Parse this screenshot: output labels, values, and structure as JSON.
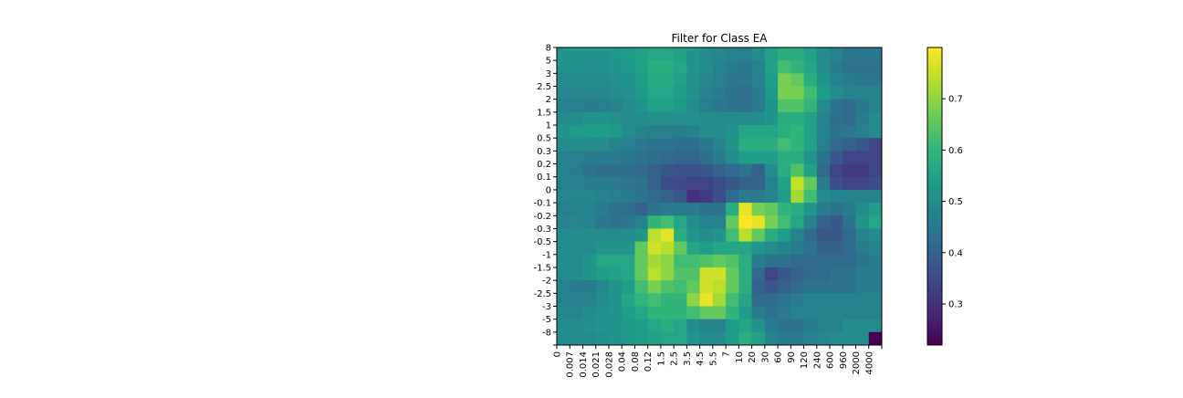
{
  "chart_data": {
    "type": "heatmap",
    "title": "Filter for Class EA",
    "xlabel": "",
    "ylabel": "",
    "x_tick_labels": [
      "0",
      "0.007",
      "0.014",
      "0.021",
      "0.028",
      "0.04",
      "0.08",
      "0.12",
      "1.5",
      "2.5",
      "3.5",
      "4.5",
      "5.5",
      "7",
      "10",
      "20",
      "30",
      "60",
      "90",
      "120",
      "240",
      "600",
      "960",
      "2000",
      "4000"
    ],
    "y_tick_labels": [
      "8",
      "5",
      "3",
      "2.5",
      "2",
      "1.5",
      "1",
      "0.5",
      "0.3",
      "0.2",
      "0.1",
      "0",
      "-0.1",
      "-0.2",
      "-0.3",
      "-0.5",
      "-1",
      "-1.5",
      "-2",
      "-2.5",
      "-3",
      "-5",
      "-8"
    ],
    "colormap": "viridis",
    "colorbar": {
      "vmin": 0.22,
      "vmax": 0.8,
      "ticks": [
        0.3,
        0.4,
        0.5,
        0.6,
        0.7
      ],
      "tick_labels": [
        "0.3",
        "0.4",
        "0.5",
        "0.6",
        "0.7"
      ]
    },
    "values": [
      [
        0.52,
        0.52,
        0.52,
        0.52,
        0.53,
        0.54,
        0.55,
        0.56,
        0.56,
        0.55,
        0.52,
        0.5,
        0.49,
        0.48,
        0.47,
        0.5,
        0.55,
        0.58,
        0.58,
        0.55,
        0.5,
        0.48,
        0.45,
        0.45,
        0.45
      ],
      [
        0.52,
        0.52,
        0.51,
        0.51,
        0.52,
        0.53,
        0.55,
        0.58,
        0.58,
        0.56,
        0.52,
        0.5,
        0.48,
        0.46,
        0.45,
        0.48,
        0.55,
        0.62,
        0.6,
        0.56,
        0.5,
        0.46,
        0.44,
        0.44,
        0.44
      ],
      [
        0.5,
        0.5,
        0.5,
        0.5,
        0.51,
        0.52,
        0.54,
        0.57,
        0.57,
        0.55,
        0.51,
        0.49,
        0.47,
        0.45,
        0.45,
        0.47,
        0.54,
        0.68,
        0.66,
        0.58,
        0.52,
        0.48,
        0.46,
        0.45,
        0.45
      ],
      [
        0.49,
        0.49,
        0.49,
        0.49,
        0.5,
        0.51,
        0.53,
        0.56,
        0.56,
        0.54,
        0.51,
        0.48,
        0.46,
        0.44,
        0.43,
        0.46,
        0.53,
        0.68,
        0.68,
        0.62,
        0.54,
        0.5,
        0.48,
        0.48,
        0.48
      ],
      [
        0.48,
        0.47,
        0.46,
        0.47,
        0.48,
        0.5,
        0.52,
        0.55,
        0.55,
        0.53,
        0.5,
        0.47,
        0.45,
        0.44,
        0.43,
        0.46,
        0.52,
        0.64,
        0.64,
        0.6,
        0.5,
        0.44,
        0.42,
        0.45,
        0.48
      ],
      [
        0.5,
        0.5,
        0.52,
        0.52,
        0.51,
        0.5,
        0.5,
        0.51,
        0.51,
        0.51,
        0.51,
        0.5,
        0.5,
        0.5,
        0.5,
        0.5,
        0.52,
        0.58,
        0.58,
        0.55,
        0.48,
        0.43,
        0.42,
        0.46,
        0.5
      ],
      [
        0.52,
        0.53,
        0.54,
        0.54,
        0.53,
        0.5,
        0.48,
        0.47,
        0.47,
        0.47,
        0.48,
        0.5,
        0.5,
        0.52,
        0.56,
        0.56,
        0.56,
        0.58,
        0.6,
        0.55,
        0.48,
        0.44,
        0.45,
        0.47,
        0.5
      ],
      [
        0.5,
        0.5,
        0.5,
        0.5,
        0.48,
        0.47,
        0.45,
        0.44,
        0.44,
        0.43,
        0.43,
        0.45,
        0.48,
        0.52,
        0.58,
        0.58,
        0.58,
        0.62,
        0.6,
        0.55,
        0.47,
        0.42,
        0.4,
        0.38,
        0.34
      ],
      [
        0.48,
        0.47,
        0.46,
        0.46,
        0.46,
        0.45,
        0.44,
        0.43,
        0.42,
        0.41,
        0.41,
        0.43,
        0.46,
        0.5,
        0.54,
        0.54,
        0.54,
        0.58,
        0.58,
        0.52,
        0.44,
        0.38,
        0.34,
        0.34,
        0.34
      ],
      [
        0.48,
        0.46,
        0.44,
        0.43,
        0.43,
        0.43,
        0.42,
        0.4,
        0.38,
        0.37,
        0.37,
        0.38,
        0.4,
        0.42,
        0.44,
        0.4,
        0.5,
        0.58,
        0.64,
        0.55,
        0.42,
        0.34,
        0.32,
        0.32,
        0.34
      ],
      [
        0.48,
        0.47,
        0.46,
        0.46,
        0.46,
        0.45,
        0.44,
        0.4,
        0.36,
        0.35,
        0.34,
        0.34,
        0.36,
        0.38,
        0.4,
        0.4,
        0.48,
        0.55,
        0.75,
        0.66,
        0.46,
        0.36,
        0.34,
        0.34,
        0.36
      ],
      [
        0.49,
        0.49,
        0.49,
        0.48,
        0.47,
        0.46,
        0.44,
        0.42,
        0.4,
        0.38,
        0.3,
        0.32,
        0.36,
        0.42,
        0.46,
        0.46,
        0.48,
        0.54,
        0.72,
        0.62,
        0.5,
        0.48,
        0.48,
        0.48,
        0.48
      ],
      [
        0.47,
        0.48,
        0.48,
        0.46,
        0.44,
        0.43,
        0.4,
        0.44,
        0.46,
        0.46,
        0.46,
        0.44,
        0.44,
        0.58,
        0.78,
        0.68,
        0.66,
        0.6,
        0.58,
        0.52,
        0.46,
        0.44,
        0.46,
        0.5,
        0.54
      ],
      [
        0.48,
        0.49,
        0.48,
        0.45,
        0.44,
        0.45,
        0.48,
        0.6,
        0.62,
        0.56,
        0.5,
        0.48,
        0.48,
        0.66,
        0.8,
        0.78,
        0.68,
        0.62,
        0.56,
        0.48,
        0.4,
        0.38,
        0.44,
        0.52,
        0.56
      ],
      [
        0.5,
        0.5,
        0.5,
        0.5,
        0.5,
        0.5,
        0.52,
        0.74,
        0.78,
        0.58,
        0.52,
        0.5,
        0.52,
        0.62,
        0.74,
        0.66,
        0.58,
        0.54,
        0.48,
        0.42,
        0.38,
        0.38,
        0.42,
        0.48,
        0.5
      ],
      [
        0.5,
        0.5,
        0.5,
        0.52,
        0.52,
        0.52,
        0.66,
        0.76,
        0.74,
        0.66,
        0.56,
        0.54,
        0.56,
        0.56,
        0.56,
        0.52,
        0.5,
        0.48,
        0.46,
        0.44,
        0.4,
        0.4,
        0.42,
        0.46,
        0.48
      ],
      [
        0.5,
        0.5,
        0.52,
        0.56,
        0.56,
        0.56,
        0.66,
        0.72,
        0.7,
        0.62,
        0.62,
        0.64,
        0.66,
        0.64,
        0.58,
        0.46,
        0.44,
        0.44,
        0.42,
        0.42,
        0.42,
        0.42,
        0.42,
        0.44,
        0.46
      ],
      [
        0.5,
        0.5,
        0.52,
        0.54,
        0.55,
        0.56,
        0.66,
        0.74,
        0.7,
        0.64,
        0.64,
        0.76,
        0.76,
        0.66,
        0.58,
        0.42,
        0.34,
        0.38,
        0.4,
        0.42,
        0.42,
        0.44,
        0.44,
        0.46,
        0.46
      ],
      [
        0.48,
        0.46,
        0.46,
        0.49,
        0.52,
        0.54,
        0.62,
        0.68,
        0.64,
        0.62,
        0.66,
        0.76,
        0.74,
        0.66,
        0.58,
        0.4,
        0.38,
        0.4,
        0.42,
        0.44,
        0.44,
        0.44,
        0.44,
        0.46,
        0.46
      ],
      [
        0.48,
        0.47,
        0.48,
        0.5,
        0.52,
        0.56,
        0.6,
        0.62,
        0.6,
        0.6,
        0.7,
        0.78,
        0.72,
        0.62,
        0.56,
        0.42,
        0.42,
        0.44,
        0.46,
        0.48,
        0.48,
        0.48,
        0.48,
        0.48,
        0.48
      ],
      [
        0.49,
        0.49,
        0.5,
        0.51,
        0.52,
        0.54,
        0.56,
        0.6,
        0.6,
        0.6,
        0.62,
        0.66,
        0.66,
        0.6,
        0.54,
        0.46,
        0.44,
        0.46,
        0.48,
        0.48,
        0.48,
        0.48,
        0.48,
        0.48,
        0.48
      ],
      [
        0.5,
        0.5,
        0.51,
        0.52,
        0.52,
        0.53,
        0.54,
        0.56,
        0.58,
        0.56,
        0.5,
        0.48,
        0.48,
        0.54,
        0.56,
        0.52,
        0.46,
        0.44,
        0.44,
        0.46,
        0.48,
        0.48,
        0.5,
        0.5,
        0.5
      ],
      [
        0.5,
        0.5,
        0.5,
        0.51,
        0.52,
        0.53,
        0.54,
        0.55,
        0.56,
        0.56,
        0.52,
        0.5,
        0.5,
        0.54,
        0.58,
        0.55,
        0.48,
        0.46,
        0.46,
        0.48,
        0.49,
        0.5,
        0.5,
        0.5,
        0.22
      ]
    ]
  }
}
